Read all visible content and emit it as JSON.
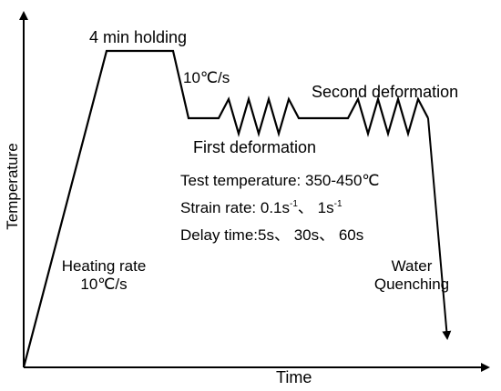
{
  "axes": {
    "x_label": "Time",
    "y_label": "Temperature"
  },
  "labels": {
    "holding": "4 min holding",
    "cooling_rate": "10℃/s",
    "first_deformation": "First deformation",
    "second_deformation": "Second deformation",
    "heating_rate_line1": "Heating rate",
    "heating_rate_line2": "10℃/s",
    "water_line1": "Water",
    "water_line2": "Quenching"
  },
  "conditions": {
    "test_temperature": "Test temperature: 350-450℃",
    "strain_rate_prefix": "Strain rate: 0.1s",
    "strain_rate_exp": "-1",
    "strain_rate_sep": "、 1s",
    "delay_time": "Delay time:5s、 30s、 60s"
  },
  "colors": {
    "line": "#000000",
    "background": "#ffffff"
  }
}
